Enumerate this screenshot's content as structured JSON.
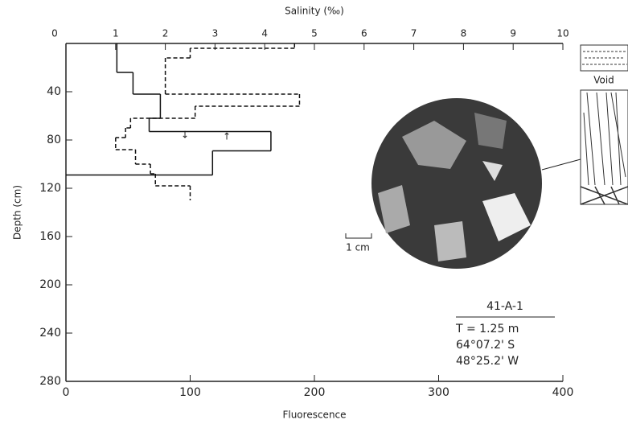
{
  "chart_data": {
    "type": "step",
    "x_label": "Fluorescence",
    "x2_label": "Salinity (‰)",
    "y_label": "Depth (cm)",
    "xlim": [
      0,
      400
    ],
    "xticks": [
      0,
      100,
      200,
      300,
      400
    ],
    "x2lim": [
      0,
      10
    ],
    "x2ticks": [
      0,
      1,
      2,
      3,
      4,
      5,
      6,
      7,
      8,
      9,
      10
    ],
    "ylim": [
      0,
      280
    ],
    "yticks": [
      40,
      80,
      120,
      160,
      200,
      240,
      280
    ],
    "series": [
      {
        "name": "Fluorescence",
        "color": "#111",
        "dash": false,
        "bins": [
          0,
          24,
          42,
          62,
          73,
          89,
          109
        ],
        "values": [
          41,
          54,
          76,
          67,
          165,
          118
        ]
      },
      {
        "name": "Salinity",
        "color": "#111",
        "dash": true,
        "axis": "x2",
        "bins": [
          0,
          4,
          12,
          42,
          52,
          62,
          70,
          78,
          88,
          100,
          108,
          118,
          130
        ],
        "values": [
          4.6,
          2.5,
          2.0,
          4.7,
          2.6,
          1.3,
          1.2,
          1.0,
          1.4,
          1.7,
          1.8,
          2.5
        ]
      }
    ],
    "annotations": {
      "void": "Void",
      "scale": "1 cm",
      "core_id": "41-A-1",
      "thickness": "T = 1.25 m",
      "latitude": "64°07.2' S",
      "longitude": "48°25.2' W"
    }
  }
}
